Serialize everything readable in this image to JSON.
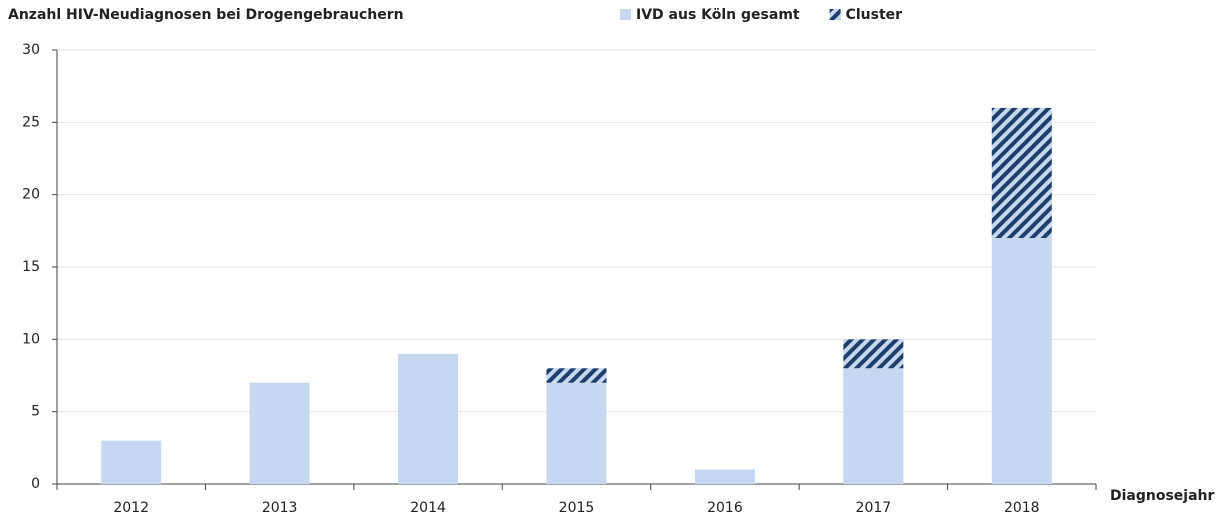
{
  "chart_data": {
    "type": "stacked-bar",
    "title": "Anzahl HIV-Neudiagnosen bei Drogengebrauchern",
    "x_label": "Diagnosejahr",
    "categories": [
      "2012",
      "2013",
      "2014",
      "2015",
      "2016",
      "2017",
      "2018"
    ],
    "series": [
      {
        "name": "IVD aus Köln gesamt",
        "color": "#c6d7ef",
        "values": [
          3,
          7,
          9,
          7,
          1,
          8,
          17
        ]
      },
      {
        "name": "Cluster",
        "color": "#1f3e6e",
        "pattern": "hatch",
        "values": [
          0,
          0,
          0,
          1,
          0,
          2,
          9
        ]
      }
    ],
    "ylim": [
      0,
      30
    ],
    "yticks": [
      0,
      5,
      10,
      15,
      20,
      25,
      30
    ],
    "grid": true
  }
}
